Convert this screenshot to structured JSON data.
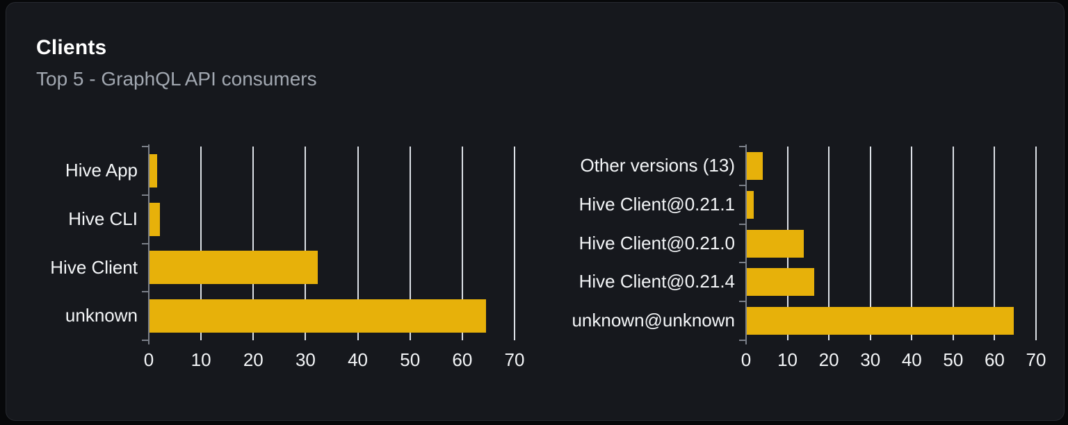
{
  "page": {
    "title": "Clients",
    "subtitle": "Top 5 - GraphQL API consumers"
  },
  "colors": {
    "page_bg": "#07080a",
    "card_bg": "#16181d",
    "card_border": "#272a30",
    "title": "#ffffff",
    "subtitle": "#a2a8b1",
    "bar": "#e7b10a",
    "gridline": "#dde1e7",
    "axis": "#7b8089",
    "chart_label": "#f4f6f8"
  },
  "chart_data": [
    {
      "type": "bar",
      "orientation": "horizontal",
      "categories": [
        "Hive App",
        "Hive CLI",
        "Hive Client",
        "unknown"
      ],
      "values": [
        1.4,
        2,
        32.2,
        64.4
      ],
      "xlim": [
        0,
        70
      ],
      "xticks": [
        0,
        10,
        20,
        30,
        40,
        50,
        60,
        70
      ],
      "grid": true,
      "legend": false,
      "bar_color": "#e7b10a"
    },
    {
      "type": "bar",
      "orientation": "horizontal",
      "categories": [
        "Other versions (13)",
        "Hive Client@0.21.1",
        "Hive Client@0.21.0",
        "Hive Client@0.21.4",
        "unknown@unknown"
      ],
      "values": [
        3.8,
        1.7,
        13.7,
        16.3,
        64.5
      ],
      "xlim": [
        0,
        70
      ],
      "xticks": [
        0,
        10,
        20,
        30,
        40,
        50,
        60,
        70
      ],
      "grid": true,
      "legend": false,
      "bar_color": "#e7b10a"
    }
  ]
}
